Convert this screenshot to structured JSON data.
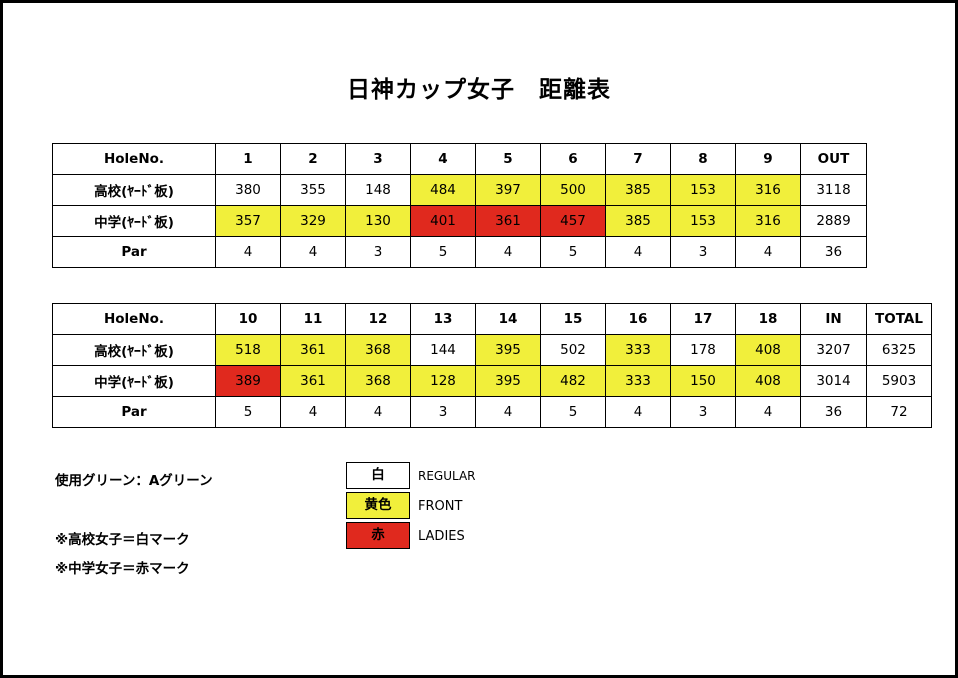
{
  "title": "日神カップ女子　距離表",
  "front_nine": {
    "header": [
      "HoleNo.",
      "1",
      "2",
      "3",
      "4",
      "5",
      "6",
      "7",
      "8",
      "9",
      "OUT"
    ],
    "rows": [
      {
        "label": "高校(ﾔｰﾄﾞ板)",
        "cells": [
          {
            "v": "380",
            "c": ""
          },
          {
            "v": "355",
            "c": ""
          },
          {
            "v": "148",
            "c": ""
          },
          {
            "v": "484",
            "c": "y"
          },
          {
            "v": "397",
            "c": "y"
          },
          {
            "v": "500",
            "c": "y"
          },
          {
            "v": "385",
            "c": "y"
          },
          {
            "v": "153",
            "c": "y"
          },
          {
            "v": "316",
            "c": "y"
          },
          {
            "v": "3118",
            "c": ""
          }
        ]
      },
      {
        "label": "中学(ﾔｰﾄﾞ板)",
        "cells": [
          {
            "v": "357",
            "c": "y"
          },
          {
            "v": "329",
            "c": "y"
          },
          {
            "v": "130",
            "c": "y"
          },
          {
            "v": "401",
            "c": "r"
          },
          {
            "v": "361",
            "c": "r"
          },
          {
            "v": "457",
            "c": "r"
          },
          {
            "v": "385",
            "c": "y"
          },
          {
            "v": "153",
            "c": "y"
          },
          {
            "v": "316",
            "c": "y"
          },
          {
            "v": "2889",
            "c": ""
          }
        ]
      },
      {
        "label": "Par",
        "cells": [
          {
            "v": "4",
            "c": ""
          },
          {
            "v": "4",
            "c": ""
          },
          {
            "v": "3",
            "c": ""
          },
          {
            "v": "5",
            "c": ""
          },
          {
            "v": "4",
            "c": ""
          },
          {
            "v": "5",
            "c": ""
          },
          {
            "v": "4",
            "c": ""
          },
          {
            "v": "3",
            "c": ""
          },
          {
            "v": "4",
            "c": ""
          },
          {
            "v": "36",
            "c": ""
          }
        ]
      }
    ]
  },
  "back_nine": {
    "header": [
      "HoleNo.",
      "10",
      "11",
      "12",
      "13",
      "14",
      "15",
      "16",
      "17",
      "18",
      "IN",
      "TOTAL"
    ],
    "rows": [
      {
        "label": "高校(ﾔｰﾄﾞ板)",
        "cells": [
          {
            "v": "518",
            "c": "y"
          },
          {
            "v": "361",
            "c": "y"
          },
          {
            "v": "368",
            "c": "y"
          },
          {
            "v": "144",
            "c": ""
          },
          {
            "v": "395",
            "c": "y"
          },
          {
            "v": "502",
            "c": ""
          },
          {
            "v": "333",
            "c": "y"
          },
          {
            "v": "178",
            "c": ""
          },
          {
            "v": "408",
            "c": "y"
          },
          {
            "v": "3207",
            "c": ""
          },
          {
            "v": "6325",
            "c": ""
          }
        ]
      },
      {
        "label": "中学(ﾔｰﾄﾞ板)",
        "cells": [
          {
            "v": "389",
            "c": "r"
          },
          {
            "v": "361",
            "c": "y"
          },
          {
            "v": "368",
            "c": "y"
          },
          {
            "v": "128",
            "c": "y"
          },
          {
            "v": "395",
            "c": "y"
          },
          {
            "v": "482",
            "c": "y"
          },
          {
            "v": "333",
            "c": "y"
          },
          {
            "v": "150",
            "c": "y"
          },
          {
            "v": "408",
            "c": "y"
          },
          {
            "v": "3014",
            "c": ""
          },
          {
            "v": "5903",
            "c": ""
          }
        ]
      },
      {
        "label": "Par",
        "cells": [
          {
            "v": "5",
            "c": ""
          },
          {
            "v": "4",
            "c": ""
          },
          {
            "v": "4",
            "c": ""
          },
          {
            "v": "3",
            "c": ""
          },
          {
            "v": "4",
            "c": ""
          },
          {
            "v": "5",
            "c": ""
          },
          {
            "v": "4",
            "c": ""
          },
          {
            "v": "3",
            "c": ""
          },
          {
            "v": "4",
            "c": ""
          },
          {
            "v": "36",
            "c": ""
          },
          {
            "v": "72",
            "c": ""
          }
        ]
      }
    ]
  },
  "notes": {
    "green": "使用グリーン：Aグリーン",
    "high_school": "※高校女子＝白マーク",
    "junior_high": "※中学女子＝赤マーク"
  },
  "legend": [
    {
      "key": "白",
      "label": "REGULAR",
      "color": "#ffffff"
    },
    {
      "key": "黄色",
      "label": "FRONT",
      "color": "#f1ef3b"
    },
    {
      "key": "赤",
      "label": "LADIES",
      "color": "#e0291e"
    }
  ]
}
